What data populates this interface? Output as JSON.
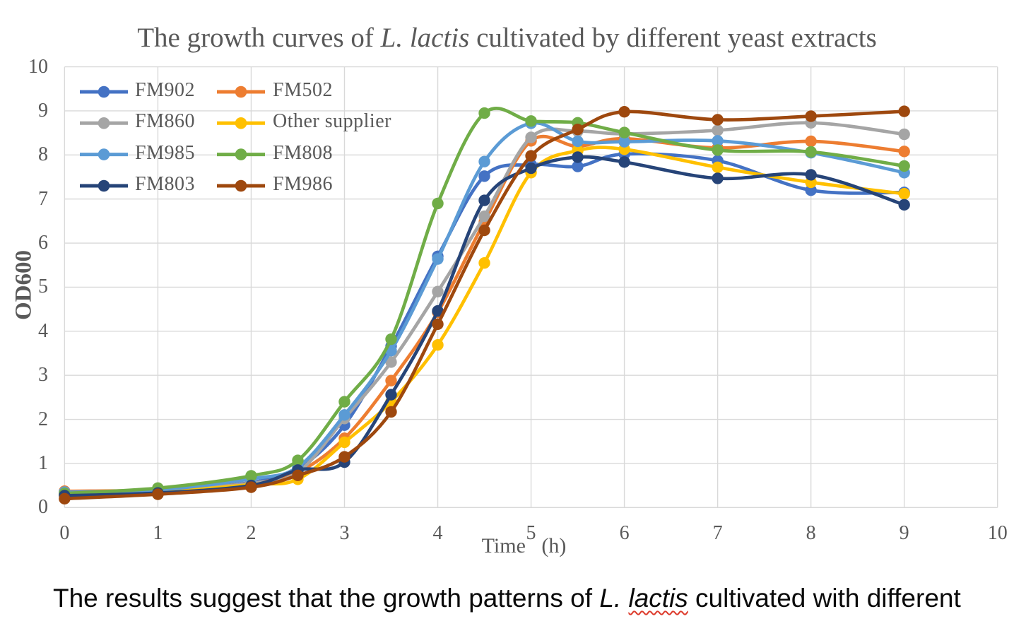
{
  "document": {
    "background": "#ffffff",
    "caption": {
      "prefix": "The results suggest that the growth patterns of ",
      "species_genus": "L. ",
      "species_epithet": "lactis",
      "suffix": " cultivated with different",
      "spellcheck_underline_color": "#dd3b2c"
    }
  },
  "chart_data": {
    "type": "line",
    "smooth": true,
    "marker": "circle",
    "title_prefix": "The growth curves of ",
    "title_italic": "L. lactis",
    "title_suffix": " cultivated by different yeast extracts",
    "xlabel_word": "Time",
    "xlabel_unit": "(h)",
    "ylabel": "OD600",
    "xlim": [
      0,
      10
    ],
    "ylim": [
      0,
      10
    ],
    "x_ticks": [
      "0",
      "1",
      "2",
      "3",
      "4",
      "5",
      "6",
      "7",
      "8",
      "9",
      "10"
    ],
    "y_ticks": [
      "0",
      "1",
      "2",
      "3",
      "4",
      "5",
      "6",
      "7",
      "8",
      "9",
      "10"
    ],
    "grid": true,
    "gridline_color": "#d9d9d9",
    "text_color": "#595959",
    "legend_position": "inside-top-left",
    "legend_column_series": [
      [
        0,
        2,
        4,
        6
      ],
      [
        1,
        3,
        5,
        7
      ]
    ],
    "x": [
      0,
      1,
      2,
      2.5,
      3,
      3.5,
      4,
      4.5,
      5,
      5.5,
      6,
      7,
      8,
      9
    ],
    "series": [
      {
        "name": "FM902",
        "color": "#4472C4",
        "values": [
          0.3,
          0.36,
          0.57,
          0.88,
          1.87,
          3.66,
          5.7,
          7.52,
          7.78,
          7.74,
          8.02,
          7.87,
          7.2,
          7.15
        ]
      },
      {
        "name": "FM502",
        "color": "#ED7D31",
        "values": [
          0.37,
          0.4,
          0.55,
          0.8,
          1.57,
          2.88,
          4.43,
          6.48,
          8.32,
          8.2,
          8.37,
          8.16,
          8.31,
          8.08
        ]
      },
      {
        "name": "FM860",
        "color": "#A5A5A5",
        "values": [
          0.3,
          0.37,
          0.55,
          0.8,
          2.02,
          3.3,
          4.9,
          6.61,
          8.4,
          8.54,
          8.48,
          8.56,
          8.73,
          8.47
        ]
      },
      {
        "name": "Other supplier",
        "color": "#FFC000",
        "values": [
          0.3,
          0.35,
          0.52,
          0.64,
          1.48,
          2.4,
          3.69,
          5.55,
          7.6,
          8.1,
          8.13,
          7.72,
          7.38,
          7.12
        ]
      },
      {
        "name": "FM985",
        "color": "#5B9BD5",
        "values": [
          0.35,
          0.4,
          0.65,
          0.92,
          2.1,
          3.56,
          5.64,
          7.85,
          8.72,
          8.31,
          8.3,
          8.32,
          8.05,
          7.6
        ]
      },
      {
        "name": "FM808",
        "color": "#70AD47",
        "values": [
          0.32,
          0.44,
          0.72,
          1.07,
          2.4,
          3.82,
          6.9,
          8.95,
          8.77,
          8.73,
          8.51,
          8.11,
          8.07,
          7.75
        ]
      },
      {
        "name": "FM803",
        "color": "#264478",
        "values": [
          0.27,
          0.33,
          0.5,
          0.85,
          1.03,
          2.56,
          4.46,
          6.97,
          7.7,
          7.95,
          7.84,
          7.47,
          7.55,
          6.87
        ]
      },
      {
        "name": "FM986",
        "color": "#9E480E",
        "values": [
          0.2,
          0.3,
          0.46,
          0.73,
          1.15,
          2.17,
          4.16,
          6.29,
          7.98,
          8.58,
          8.98,
          8.8,
          8.88,
          8.99
        ]
      }
    ]
  }
}
